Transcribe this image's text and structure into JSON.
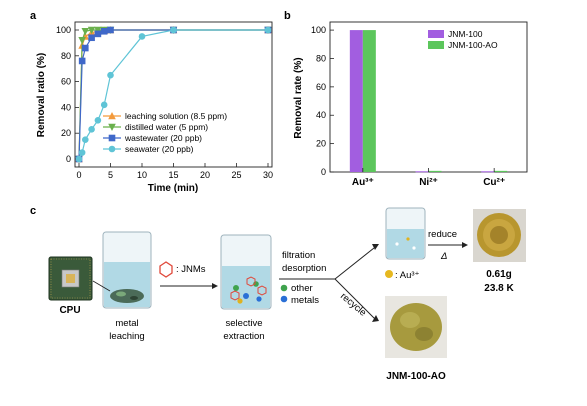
{
  "figure": {
    "panel_a_label": "a",
    "panel_b_label": "b",
    "panel_c_label": "c"
  },
  "chart_data": [
    {
      "panel": "a",
      "type": "line",
      "xlabel": "Time (min)",
      "ylabel": "Removal ratio (%)",
      "xlim": [
        0,
        30
      ],
      "ylim": [
        0,
        100
      ],
      "xticks": [
        0,
        5,
        10,
        15,
        20,
        25,
        30
      ],
      "yticks": [
        0,
        20,
        40,
        60,
        80,
        100
      ],
      "legend_position": "center-right",
      "series": [
        {
          "name": "leaching solution (8.5 ppm)",
          "color": "#f39a3b",
          "marker": "triangle-up",
          "x": [
            0,
            0.5,
            1,
            2,
            3,
            4,
            5,
            15,
            30
          ],
          "y": [
            0,
            88,
            95,
            98,
            99,
            99.5,
            100,
            100,
            100
          ]
        },
        {
          "name": "distilled water (5 ppm)",
          "color": "#6ab04c",
          "marker": "triangle-down",
          "x": [
            0,
            0.5,
            1,
            2,
            3,
            4,
            5,
            15,
            30
          ],
          "y": [
            0,
            92,
            99,
            100,
            100,
            100,
            100,
            100,
            100
          ]
        },
        {
          "name": "wastewater (20 ppb)",
          "color": "#3f68c9",
          "marker": "square",
          "x": [
            0,
            0.5,
            1,
            2,
            3,
            4,
            5,
            15,
            30
          ],
          "y": [
            0,
            76,
            86,
            94,
            97,
            99,
            100,
            100,
            100
          ]
        },
        {
          "name": "seawater (20 ppb)",
          "color": "#5fc4d6",
          "marker": "circle",
          "x": [
            0,
            0.5,
            1,
            2,
            3,
            4,
            5,
            10,
            15,
            30
          ],
          "y": [
            0,
            5,
            15,
            23,
            30,
            42,
            65,
            95,
            100,
            100
          ]
        }
      ]
    },
    {
      "panel": "b",
      "type": "bar",
      "ylabel": "Removal rate (%)",
      "ylim": [
        0,
        105
      ],
      "yticks": [
        0,
        20,
        40,
        60,
        80,
        100
      ],
      "categories": [
        "Au³⁺",
        "Ni²⁺",
        "Cu²⁺"
      ],
      "legend_position": "top-right",
      "series": [
        {
          "name": "JNM-100",
          "color": "#a25ee0",
          "values": [
            100,
            0.5,
            0.5
          ]
        },
        {
          "name": "JNM-100-AO",
          "color": "#5cc65c",
          "values": [
            100,
            0.8,
            0.8
          ]
        }
      ]
    }
  ],
  "schematic": {
    "cpu_label": "CPU",
    "leaching_label_1": "metal",
    "leaching_label_2": "leaching",
    "jnm_legend": ": JNMs",
    "extraction_label_1": "selective",
    "extraction_label_2": "extraction",
    "filtration_label": "filtration",
    "desorption_label": "desorption",
    "other_label": "other",
    "metals_label": "metals",
    "au_label": ": Au³⁺",
    "reduce_label": "reduce",
    "delta_label": "Δ",
    "mass_label": "0.61g",
    "karat_label": "23.8 K",
    "recycle_label": "recycle",
    "product_label": "JNM-100-AO"
  }
}
